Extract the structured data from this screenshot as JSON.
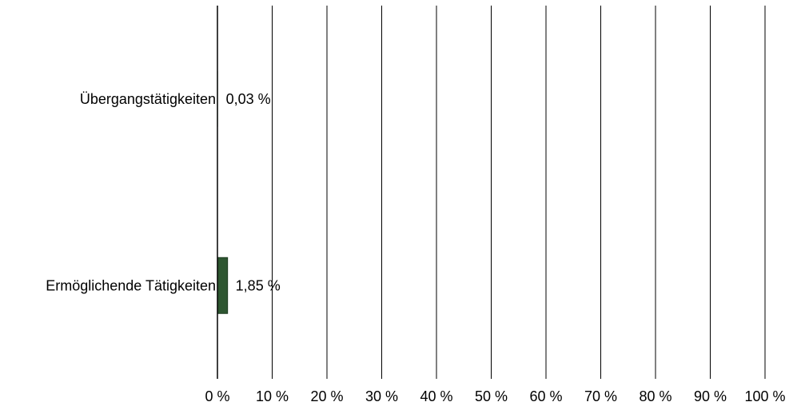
{
  "chart_data": {
    "type": "bar",
    "orientation": "horizontal",
    "categories": [
      "Übergangstätigkeiten",
      "Ermöglichende Tätigkeiten"
    ],
    "values": [
      0.03,
      1.85
    ],
    "value_labels": [
      "0,03 %",
      "1,85 %"
    ],
    "xlim": [
      0,
      100
    ],
    "xticks": [
      0,
      10,
      20,
      30,
      40,
      50,
      60,
      70,
      80,
      90,
      100
    ],
    "xtick_labels": [
      "0 %",
      "10 %",
      "20 %",
      "30 %",
      "40 %",
      "50 %",
      "60 %",
      "70 %",
      "80 %",
      "90 %",
      "100 %"
    ],
    "grid": true,
    "bar_color": "#2e5631",
    "title": "",
    "xlabel": "",
    "ylabel": ""
  }
}
